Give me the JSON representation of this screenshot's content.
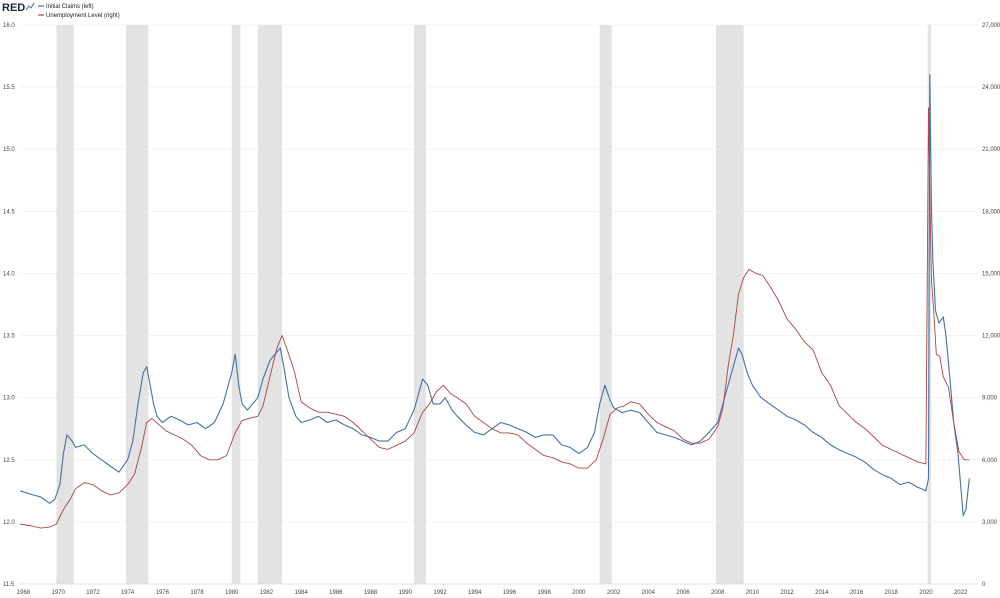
{
  "logo": {
    "text": "RED",
    "mark": "chart-squiggle"
  },
  "legend": {
    "items": [
      {
        "label": "Initial Claims (left)",
        "color": "#4572a7"
      },
      {
        "label": "Unemployment Level (right)",
        "color": "#aa4643"
      }
    ]
  },
  "chart_data": {
    "type": "line",
    "title": "",
    "xlabel": "",
    "ylabel_left": "",
    "ylabel_right": "",
    "grid": true,
    "legend_position": "top-left",
    "xlim": [
      1967.8,
      2023.0
    ],
    "ylim_left": [
      11.5,
      16.0
    ],
    "ylim_right": [
      0,
      27000
    ],
    "x_ticks": [
      "1968",
      "1970",
      "1972",
      "1974",
      "1976",
      "1978",
      "1980",
      "1982",
      "1984",
      "1986",
      "1988",
      "1990",
      "1992",
      "1994",
      "1996",
      "1998",
      "2000",
      "2002",
      "2004",
      "2006",
      "2008",
      "2010",
      "2012",
      "2014",
      "2016",
      "2018",
      "2020",
      "2022"
    ],
    "y_ticks_left": [
      "11.5",
      "12.0",
      "12.5",
      "13.0",
      "13.5",
      "14.0",
      "14.5",
      "15.0",
      "15.5",
      "16.0"
    ],
    "y_ticks_right": [
      "0",
      "3,000",
      "6,000",
      "9,000",
      "12,000",
      "15,000",
      "18,000",
      "21,000",
      "24,000",
      "27,000"
    ],
    "recessions": [
      [
        1969.9,
        1970.9
      ],
      [
        1973.9,
        1975.2
      ],
      [
        1980.0,
        1980.5
      ],
      [
        1981.5,
        1982.9
      ],
      [
        1990.5,
        1991.2
      ],
      [
        2001.2,
        2001.9
      ],
      [
        2007.9,
        2009.5
      ],
      [
        2020.1,
        2020.3
      ]
    ],
    "series": [
      {
        "name": "Initial Claims (left)",
        "axis": "left",
        "color": "#4572a7",
        "x": [
          1967.8,
          1968.5,
          1969.0,
          1969.5,
          1969.8,
          1970.1,
          1970.3,
          1970.5,
          1970.8,
          1971.0,
          1971.5,
          1972.0,
          1972.5,
          1973.0,
          1973.5,
          1974.0,
          1974.3,
          1974.6,
          1974.9,
          1975.1,
          1975.3,
          1975.5,
          1975.7,
          1976.0,
          1976.5,
          1977.0,
          1977.5,
          1978.0,
          1978.5,
          1979.0,
          1979.5,
          1980.0,
          1980.2,
          1980.4,
          1980.6,
          1980.9,
          1981.2,
          1981.5,
          1981.8,
          1982.2,
          1982.5,
          1982.8,
          1983.0,
          1983.3,
          1983.7,
          1984.0,
          1984.5,
          1985.0,
          1985.5,
          1986.0,
          1986.5,
          1987.0,
          1987.5,
          1988.0,
          1988.5,
          1989.0,
          1989.5,
          1990.0,
          1990.5,
          1990.8,
          1991.0,
          1991.3,
          1991.6,
          1992.0,
          1992.3,
          1992.7,
          1993.0,
          1993.5,
          1994.0,
          1994.5,
          1995.0,
          1995.5,
          1996.0,
          1996.5,
          1997.0,
          1997.5,
          1998.0,
          1998.5,
          1999.0,
          1999.5,
          2000.0,
          2000.5,
          2000.9,
          2001.2,
          2001.5,
          2001.8,
          2002.0,
          2002.5,
          2003.0,
          2003.5,
          2004.0,
          2004.5,
          2005.0,
          2005.5,
          2006.0,
          2006.5,
          2007.0,
          2007.5,
          2008.0,
          2008.3,
          2008.6,
          2008.9,
          2009.2,
          2009.4,
          2009.7,
          2010.0,
          2010.5,
          2011.0,
          2011.5,
          2012.0,
          2012.5,
          2013.0,
          2013.5,
          2014.0,
          2014.5,
          2015.0,
          2015.5,
          2016.0,
          2016.5,
          2017.0,
          2017.5,
          2018.0,
          2018.5,
          2019.0,
          2019.5,
          2020.0,
          2020.15,
          2020.22,
          2020.26,
          2020.32,
          2020.4,
          2020.55,
          2020.75,
          2021.0,
          2021.15,
          2021.35,
          2021.6,
          2021.85,
          2022.0,
          2022.15,
          2022.3,
          2022.5
        ],
        "y": [
          12.25,
          12.22,
          12.2,
          12.15,
          12.18,
          12.3,
          12.55,
          12.7,
          12.65,
          12.6,
          12.62,
          12.55,
          12.5,
          12.45,
          12.4,
          12.5,
          12.65,
          12.95,
          13.2,
          13.25,
          13.1,
          12.95,
          12.85,
          12.8,
          12.85,
          12.82,
          12.78,
          12.8,
          12.75,
          12.8,
          12.95,
          13.2,
          13.35,
          13.1,
          12.95,
          12.9,
          12.95,
          13.0,
          13.15,
          13.3,
          13.35,
          13.4,
          13.25,
          13.0,
          12.85,
          12.8,
          12.82,
          12.85,
          12.8,
          12.82,
          12.78,
          12.75,
          12.7,
          12.68,
          12.65,
          12.65,
          12.72,
          12.75,
          12.9,
          13.05,
          13.15,
          13.1,
          12.95,
          12.95,
          13.0,
          12.9,
          12.85,
          12.78,
          12.72,
          12.7,
          12.75,
          12.8,
          12.78,
          12.75,
          12.72,
          12.68,
          12.7,
          12.7,
          12.62,
          12.6,
          12.55,
          12.6,
          12.72,
          12.95,
          13.1,
          12.98,
          12.92,
          12.88,
          12.9,
          12.88,
          12.8,
          12.72,
          12.7,
          12.68,
          12.65,
          12.62,
          12.65,
          12.72,
          12.8,
          12.95,
          13.1,
          13.25,
          13.4,
          13.35,
          13.2,
          13.1,
          13.0,
          12.95,
          12.9,
          12.85,
          12.82,
          12.78,
          12.72,
          12.68,
          12.62,
          12.58,
          12.55,
          12.52,
          12.48,
          12.42,
          12.38,
          12.35,
          12.3,
          12.32,
          12.28,
          12.25,
          12.35,
          15.6,
          15.2,
          14.5,
          14.1,
          13.7,
          13.6,
          13.65,
          13.5,
          13.2,
          12.8,
          12.55,
          12.3,
          12.05,
          12.1,
          12.35
        ]
      },
      {
        "name": "Unemployment Level (right)",
        "axis": "right",
        "color": "#aa4643",
        "x": [
          1967.8,
          1968.5,
          1969.0,
          1969.5,
          1969.9,
          1970.3,
          1970.7,
          1971.0,
          1971.5,
          1972.0,
          1972.5,
          1973.0,
          1973.5,
          1974.0,
          1974.4,
          1974.8,
          1975.1,
          1975.4,
          1975.8,
          1976.2,
          1976.7,
          1977.2,
          1977.7,
          1978.2,
          1978.7,
          1979.2,
          1979.7,
          1980.2,
          1980.6,
          1981.0,
          1981.5,
          1981.8,
          1982.2,
          1982.6,
          1982.9,
          1983.2,
          1983.6,
          1984.0,
          1984.5,
          1985.0,
          1985.5,
          1986.0,
          1986.5,
          1987.0,
          1987.5,
          1988.0,
          1988.5,
          1989.0,
          1989.5,
          1990.0,
          1990.5,
          1991.0,
          1991.4,
          1991.8,
          1992.2,
          1992.6,
          1993.0,
          1993.5,
          1994.0,
          1994.5,
          1995.0,
          1995.5,
          1996.0,
          1996.5,
          1997.0,
          1997.5,
          1998.0,
          1998.5,
          1999.0,
          1999.5,
          2000.0,
          2000.5,
          2001.0,
          2001.4,
          2001.8,
          2002.2,
          2002.6,
          2003.0,
          2003.5,
          2004.0,
          2004.5,
          2005.0,
          2005.5,
          2006.0,
          2006.5,
          2007.0,
          2007.5,
          2008.0,
          2008.3,
          2008.6,
          2008.9,
          2009.2,
          2009.5,
          2009.8,
          2010.2,
          2010.6,
          2011.0,
          2011.5,
          2012.0,
          2012.5,
          2013.0,
          2013.5,
          2014.0,
          2014.5,
          2015.0,
          2015.5,
          2016.0,
          2016.5,
          2017.0,
          2017.5,
          2018.0,
          2018.5,
          2019.0,
          2019.5,
          2020.0,
          2020.15,
          2020.25,
          2020.32,
          2020.45,
          2020.6,
          2020.8,
          2021.0,
          2021.3,
          2021.6,
          2021.9,
          2022.2,
          2022.5
        ],
        "y": [
          2900,
          2800,
          2700,
          2750,
          2900,
          3600,
          4100,
          4600,
          4900,
          4800,
          4500,
          4300,
          4400,
          4800,
          5300,
          6600,
          7800,
          8000,
          7700,
          7400,
          7200,
          7000,
          6700,
          6200,
          6000,
          6000,
          6200,
          7300,
          7900,
          8000,
          8100,
          8600,
          10000,
          11400,
          12000,
          11300,
          10300,
          8800,
          8500,
          8300,
          8300,
          8200,
          8100,
          7800,
          7400,
          7000,
          6600,
          6500,
          6700,
          6900,
          7300,
          8300,
          8700,
          9300,
          9600,
          9200,
          9000,
          8700,
          8100,
          7800,
          7500,
          7300,
          7300,
          7200,
          6800,
          6500,
          6200,
          6100,
          5900,
          5800,
          5600,
          5600,
          6000,
          7000,
          8200,
          8500,
          8600,
          8800,
          8700,
          8200,
          7800,
          7600,
          7400,
          7000,
          6800,
          6800,
          7000,
          7600,
          8500,
          10500,
          12000,
          14000,
          14800,
          15200,
          15000,
          14900,
          14400,
          13700,
          12800,
          12300,
          11700,
          11300,
          10200,
          9600,
          8600,
          8200,
          7800,
          7500,
          7100,
          6700,
          6500,
          6300,
          6100,
          5900,
          5800,
          23000,
          17500,
          14600,
          13200,
          11100,
          11000,
          10000,
          9500,
          7800,
          6400,
          6000,
          6000
        ]
      }
    ]
  }
}
